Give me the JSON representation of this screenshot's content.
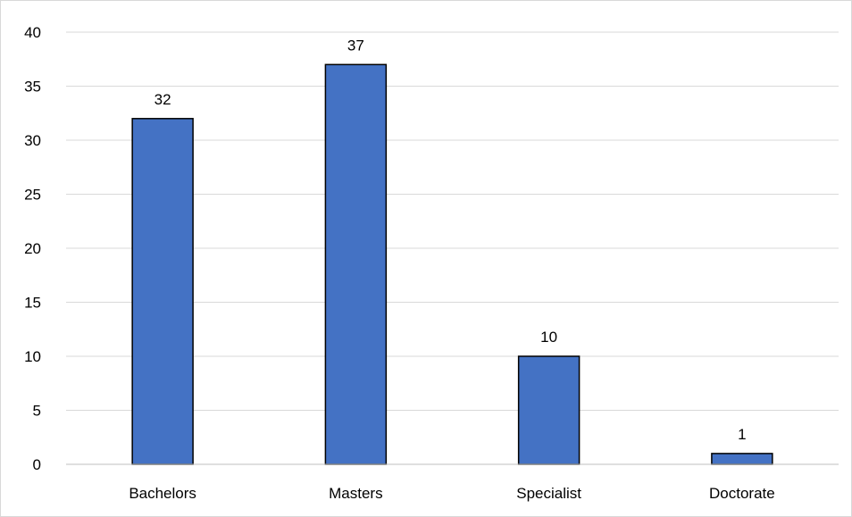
{
  "chart_data": {
    "type": "bar",
    "title": "",
    "xlabel": "",
    "ylabel": "",
    "categories": [
      "Bachelors",
      "Masters",
      "Specialist",
      "Doctorate"
    ],
    "values": [
      32,
      37,
      10,
      1
    ],
    "data_labels": [
      "32",
      "37",
      "10",
      "1"
    ],
    "ylim": [
      0,
      40
    ],
    "yticks": [
      0,
      5,
      10,
      15,
      20,
      25,
      30,
      35,
      40
    ],
    "ytick_labels": [
      "0",
      "5",
      "10",
      "15",
      "20",
      "25",
      "30",
      "35",
      "40"
    ],
    "grid": true,
    "legend": "none",
    "colors": {
      "bar_fill": "#4472c4",
      "bar_stroke": "#000000",
      "grid": "#d9d9d9"
    }
  }
}
